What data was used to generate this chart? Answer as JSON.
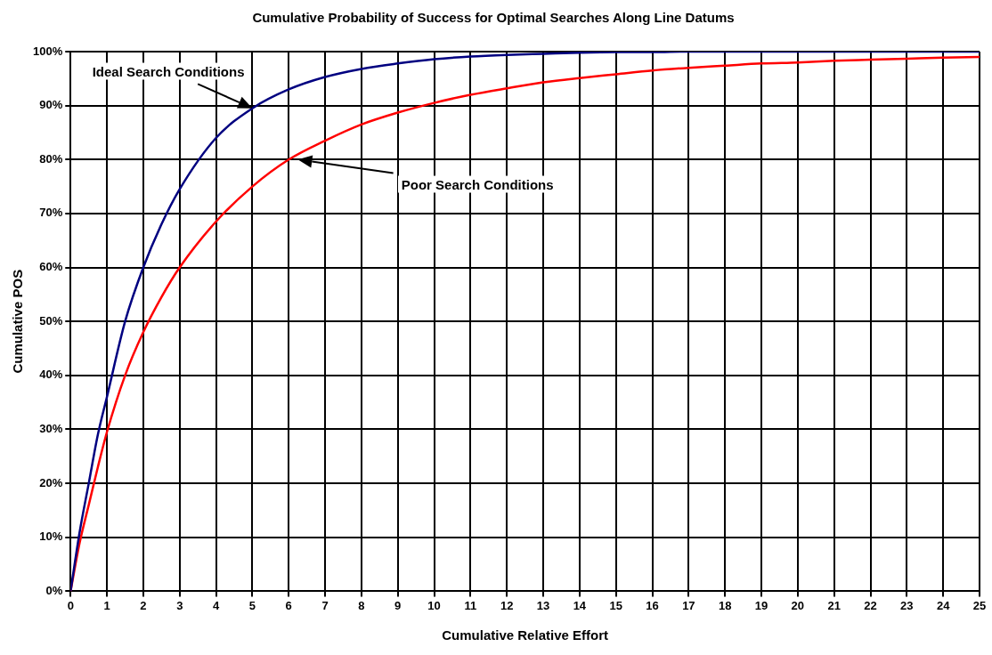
{
  "chart_data": {
    "type": "line",
    "title": "Cumulative Probability of Success for Optimal Searches Along Line Datums",
    "xlabel": "Cumulative Relative Effort",
    "ylabel": "Cumulative POS",
    "x": [
      0,
      0.25,
      0.5,
      0.75,
      1,
      1.5,
      2,
      2.5,
      3,
      4,
      5,
      6,
      7,
      8,
      9,
      10,
      11,
      12,
      13,
      14,
      15,
      16,
      17,
      18,
      19,
      20,
      21,
      22,
      23,
      24,
      25
    ],
    "series": [
      {
        "color": "#000080",
        "values": [
          0,
          11,
          20,
          29,
          36,
          50,
          60,
          68,
          74.5,
          84,
          89.5,
          93,
          95.3,
          96.8,
          97.8,
          98.6,
          99.1,
          99.4,
          99.6,
          99.8,
          99.9,
          99.9,
          100,
          100,
          100,
          100,
          100,
          100,
          100,
          100,
          100
        ]
      },
      {
        "color": "#ff0000",
        "values": [
          0,
          9,
          16,
          23,
          29.5,
          40,
          48,
          54.5,
          60,
          68.5,
          75,
          80,
          83.5,
          86.5,
          88.7,
          90.5,
          92,
          93.2,
          94.3,
          95.1,
          95.8,
          96.5,
          97,
          97.4,
          97.8,
          98,
          98.3,
          98.5,
          98.7,
          98.9,
          99
        ]
      }
    ],
    "xlim": [
      0,
      25
    ],
    "xticks": [
      0,
      1,
      2,
      3,
      4,
      5,
      6,
      7,
      8,
      9,
      10,
      11,
      12,
      13,
      14,
      15,
      16,
      17,
      18,
      19,
      20,
      21,
      22,
      23,
      24,
      25
    ],
    "ylim": [
      0,
      100
    ],
    "yticks": [
      {
        "value": 0,
        "label": "0%"
      },
      {
        "value": 10,
        "label": "10%"
      },
      {
        "value": 20,
        "label": "20%"
      },
      {
        "value": 30,
        "label": "30%"
      },
      {
        "value": 40,
        "label": "40%"
      },
      {
        "value": 50,
        "label": "50%"
      },
      {
        "value": 60,
        "label": "60%"
      },
      {
        "value": 70,
        "label": "70%"
      },
      {
        "value": 80,
        "label": "80%"
      },
      {
        "value": 90,
        "label": "90%"
      },
      {
        "value": 100,
        "label": "100%"
      }
    ],
    "annotations": [
      "Ideal Search Conditions",
      "Poor Search Conditions"
    ],
    "grid": true,
    "legend": false,
    "marker": "none",
    "line_style": "solid"
  }
}
